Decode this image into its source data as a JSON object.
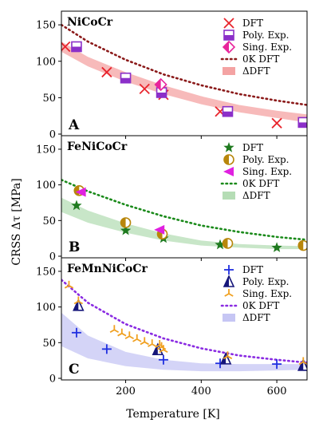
{
  "xlabel": "Temperature [K]",
  "ylabel": "CRSS Δτ [MPa]",
  "x_ticks": [
    200,
    400,
    600
  ],
  "y_ticks": [
    0,
    50,
    100,
    150
  ],
  "xlim": [
    30,
    680
  ],
  "ylim": [
    0,
    160
  ],
  "legend_labels": [
    "DFT",
    "Poly. Exp.",
    "Sing. Exp.",
    "0K DFT",
    "ΔDFT"
  ],
  "chart_data": [
    {
      "type": "scatter",
      "title": "NiCoCr",
      "panel_letter": "A",
      "xlim": [
        30,
        680
      ],
      "ylim": [
        0,
        160
      ],
      "colors": {
        "dft": "#e8242c",
        "poly": "#8b2fc9",
        "sing": "#e8249b",
        "zero": "#8b1a1a",
        "band": "#f4a3a3"
      },
      "series": [
        {
          "name": "DFT",
          "marker": "x",
          "points": [
            [
              40,
              120
            ],
            [
              150,
              85
            ],
            [
              250,
              62
            ],
            [
              300,
              54
            ],
            [
              450,
              31
            ],
            [
              600,
              15
            ]
          ]
        },
        {
          "name": "Poly. Exp.",
          "marker": "square-half",
          "points": [
            [
              70,
              120
            ],
            [
              200,
              77
            ],
            [
              295,
              57
            ],
            [
              470,
              31
            ],
            [
              670,
              16
            ]
          ]
        },
        {
          "name": "Sing. Exp.",
          "marker": "diamond-half",
          "points": [
            [
              293,
              68
            ]
          ]
        },
        {
          "name": "0K DFT",
          "marker": "dotted-line",
          "points": [
            [
              30,
              150
            ],
            [
              100,
              127
            ],
            [
              200,
              102
            ],
            [
              300,
              82
            ],
            [
              400,
              67
            ],
            [
              500,
              55
            ],
            [
              600,
              46
            ],
            [
              680,
              40
            ]
          ]
        },
        {
          "name": "ΔDFT",
          "marker": "band",
          "lower": [
            [
              30,
              113
            ],
            [
              100,
              93
            ],
            [
              200,
              72
            ],
            [
              300,
              55
            ],
            [
              400,
              41
            ],
            [
              500,
              30
            ],
            [
              600,
              22
            ],
            [
              680,
              16
            ]
          ],
          "upper": [
            [
              30,
              127
            ],
            [
              100,
              106
            ],
            [
              200,
              85
            ],
            [
              300,
              67
            ],
            [
              400,
              52
            ],
            [
              500,
              40
            ],
            [
              600,
              32
            ],
            [
              680,
              27
            ]
          ]
        }
      ]
    },
    {
      "type": "scatter",
      "title": "FeNiCoCr",
      "panel_letter": "B",
      "xlim": [
        30,
        680
      ],
      "ylim": [
        0,
        160
      ],
      "colors": {
        "dft": "#1f7a1f",
        "poly": "#b8860b",
        "sing": "#e020e0",
        "zero": "#1a8a1a",
        "band": "#b5ddb5"
      },
      "series": [
        {
          "name": "DFT",
          "marker": "star",
          "points": [
            [
              70,
              71
            ],
            [
              200,
              36
            ],
            [
              300,
              25
            ],
            [
              450,
              16
            ],
            [
              600,
              12
            ]
          ]
        },
        {
          "name": "Poly. Exp.",
          "marker": "circle-half",
          "points": [
            [
              77,
              92
            ],
            [
              200,
              47
            ],
            [
              297,
              31
            ],
            [
              470,
              18
            ],
            [
              670,
              15
            ]
          ]
        },
        {
          "name": "Sing. Exp.",
          "marker": "triangle-left",
          "points": [
            [
              82,
              90
            ],
            [
              290,
              37
            ]
          ]
        },
        {
          "name": "0K DFT",
          "marker": "dotted-line",
          "points": [
            [
              30,
              107
            ],
            [
              100,
              91
            ],
            [
              200,
              72
            ],
            [
              300,
              56
            ],
            [
              400,
              43
            ],
            [
              500,
              34
            ],
            [
              600,
              27
            ],
            [
              680,
              23
            ]
          ]
        },
        {
          "name": "ΔDFT",
          "marker": "band",
          "lower": [
            [
              30,
              62
            ],
            [
              100,
              47
            ],
            [
              200,
              33
            ],
            [
              300,
              22
            ],
            [
              400,
              15
            ],
            [
              500,
              12
            ],
            [
              600,
              10
            ],
            [
              680,
              10
            ]
          ],
          "upper": [
            [
              30,
              82
            ],
            [
              100,
              64
            ],
            [
              200,
              46
            ],
            [
              300,
              32
            ],
            [
              400,
              22
            ],
            [
              500,
              17
            ],
            [
              600,
              15
            ],
            [
              680,
              14
            ]
          ]
        }
      ]
    },
    {
      "type": "scatter",
      "title": "FeMnNiCoCr",
      "panel_letter": "C",
      "xlim": [
        30,
        680
      ],
      "ylim": [
        0,
        160
      ],
      "colors": {
        "dft": "#1f2fe0",
        "poly": "#16167a",
        "sing": "#f0a020",
        "zero": "#8a2be2",
        "band": "#c6c6f4"
      },
      "series": [
        {
          "name": "DFT",
          "marker": "plus",
          "points": [
            [
              70,
              64
            ],
            [
              150,
              41
            ],
            [
              300,
              26
            ],
            [
              450,
              21
            ],
            [
              600,
              20
            ]
          ]
        },
        {
          "name": "Poly. Exp.",
          "marker": "triangle-half",
          "points": [
            [
              75,
              102
            ],
            [
              285,
              40
            ],
            [
              465,
              27
            ],
            [
              670,
              18
            ]
          ]
        },
        {
          "name": "Sing. Exp.",
          "marker": "tri-down",
          "points": [
            [
              50,
              130
            ],
            [
              75,
              108
            ],
            [
              170,
              68
            ],
            [
              190,
              63
            ],
            [
              210,
              59
            ],
            [
              230,
              55
            ],
            [
              250,
              51
            ],
            [
              270,
              48
            ],
            [
              290,
              47
            ],
            [
              295,
              44
            ],
            [
              300,
              40
            ],
            [
              470,
              31
            ],
            [
              670,
              23
            ]
          ]
        },
        {
          "name": "0K DFT",
          "marker": "dotted-line",
          "points": [
            [
              30,
              138
            ],
            [
              100,
              106
            ],
            [
              200,
              76
            ],
            [
              300,
              56
            ],
            [
              400,
              42
            ],
            [
              500,
              32
            ],
            [
              600,
              26
            ],
            [
              680,
              22
            ]
          ]
        },
        {
          "name": "ΔDFT",
          "marker": "band",
          "lower": [
            [
              30,
              45
            ],
            [
              100,
              28
            ],
            [
              200,
              17
            ],
            [
              300,
              12
            ],
            [
              400,
              10
            ],
            [
              500,
              10
            ],
            [
              600,
              11
            ],
            [
              680,
              12
            ]
          ],
          "upper": [
            [
              30,
              92
            ],
            [
              100,
              60
            ],
            [
              200,
              37
            ],
            [
              300,
              26
            ],
            [
              400,
              21
            ],
            [
              500,
              20
            ],
            [
              600,
              20
            ],
            [
              680,
              20
            ]
          ]
        }
      ]
    }
  ]
}
